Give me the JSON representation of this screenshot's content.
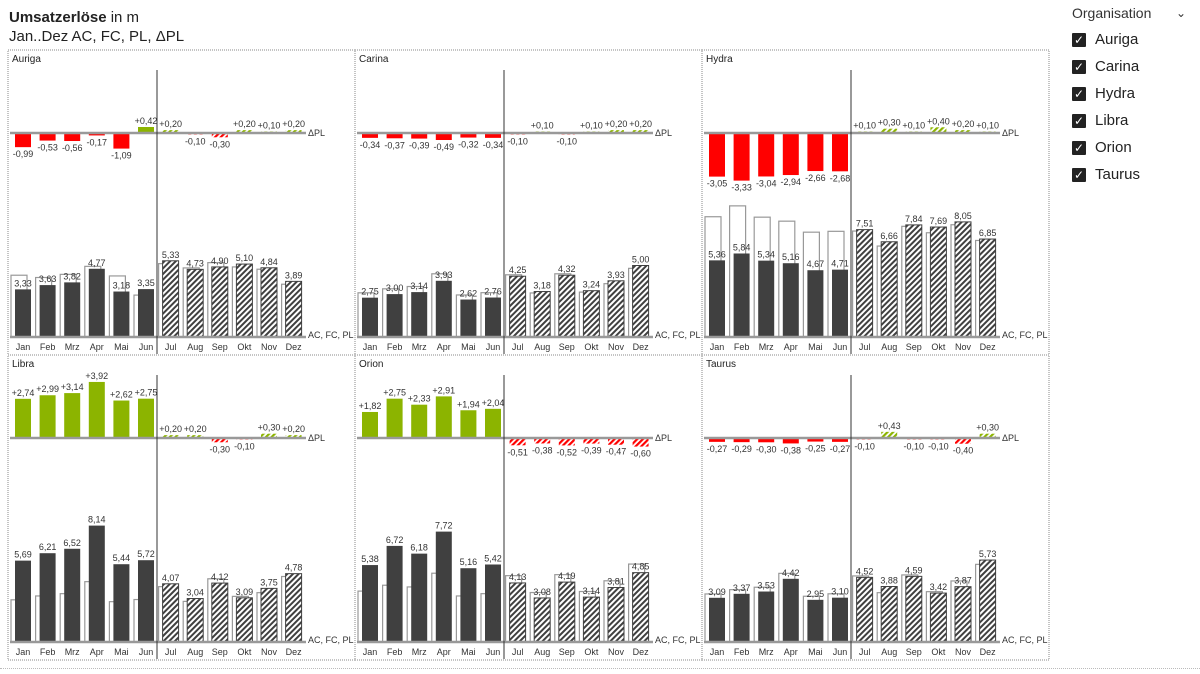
{
  "header": {
    "title_bold": "Umsatzerlöse",
    "title_unit": "in m",
    "subtitle": "Jan..Dez AC, FC, PL, ΔPL"
  },
  "slicer": {
    "title": "Organisation",
    "items": [
      {
        "label": "Auriga",
        "checked": true
      },
      {
        "label": "Carina",
        "checked": true
      },
      {
        "label": "Hydra",
        "checked": true
      },
      {
        "label": "Libra",
        "checked": true
      },
      {
        "label": "Orion",
        "checked": true
      },
      {
        "label": "Taurus",
        "checked": true
      }
    ]
  },
  "chart_data": {
    "type": "bar",
    "categories": [
      "Jan",
      "Feb",
      "Mrz",
      "Apr",
      "Mai",
      "Jun",
      "Jul",
      "Aug",
      "Sep",
      "Okt",
      "Nov",
      "Dez"
    ],
    "delta_label": "ΔPL",
    "series_label": "AC, FC, PL",
    "colors": {
      "ac": "#404040",
      "positive": "#8cb400",
      "negative": "#ff0000"
    },
    "note": "Jan–Jun AC (solid), Jul–Dez FC (hatched); PL shown as white outline bar",
    "panels": [
      {
        "name": "Auriga",
        "values": [
          3.33,
          3.63,
          3.82,
          4.77,
          3.18,
          3.35,
          5.33,
          4.73,
          4.9,
          5.1,
          4.84,
          3.89
        ],
        "delta_pl": [
          -0.99,
          -0.53,
          -0.56,
          -0.17,
          -1.09,
          0.42,
          0.2,
          -0.1,
          -0.3,
          0.2,
          0.1,
          0.2
        ]
      },
      {
        "name": "Carina",
        "values": [
          2.75,
          3.0,
          3.14,
          3.93,
          2.62,
          2.76,
          4.25,
          3.18,
          4.32,
          3.24,
          3.93,
          5.0
        ],
        "delta_pl": [
          -0.34,
          -0.37,
          -0.39,
          -0.49,
          -0.32,
          -0.34,
          -0.1,
          0.1,
          -0.1,
          0.1,
          0.2,
          0.2
        ]
      },
      {
        "name": "Hydra",
        "values": [
          5.36,
          5.84,
          5.34,
          5.16,
          4.67,
          4.71,
          7.51,
          6.66,
          7.84,
          7.69,
          8.05,
          6.85
        ],
        "delta_pl": [
          -3.05,
          -3.33,
          -3.04,
          -2.94,
          -2.66,
          -2.68,
          0.1,
          0.3,
          0.1,
          0.4,
          0.2,
          0.1
        ]
      },
      {
        "name": "Libra",
        "values": [
          5.69,
          6.21,
          6.52,
          8.14,
          5.44,
          5.72,
          4.07,
          3.04,
          4.12,
          3.09,
          3.75,
          4.78
        ],
        "delta_pl": [
          2.74,
          2.99,
          3.14,
          3.92,
          2.62,
          2.75,
          0.2,
          0.2,
          -0.3,
          -0.1,
          0.3,
          0.2
        ]
      },
      {
        "name": "Orion",
        "values": [
          5.38,
          6.72,
          6.18,
          7.72,
          5.16,
          5.42,
          4.13,
          3.08,
          4.19,
          3.14,
          3.81,
          4.85
        ],
        "delta_pl": [
          1.82,
          2.75,
          2.33,
          2.91,
          1.94,
          2.04,
          -0.51,
          -0.38,
          -0.52,
          -0.39,
          -0.47,
          -0.6
        ]
      },
      {
        "name": "Taurus",
        "values": [
          3.09,
          3.37,
          3.53,
          4.42,
          2.95,
          3.1,
          4.52,
          3.88,
          4.59,
          3.42,
          3.87,
          5.73
        ],
        "delta_pl": [
          -0.27,
          -0.29,
          -0.3,
          -0.38,
          -0.25,
          -0.27,
          -0.1,
          0.43,
          -0.1,
          -0.1,
          -0.4,
          0.3
        ]
      }
    ]
  }
}
